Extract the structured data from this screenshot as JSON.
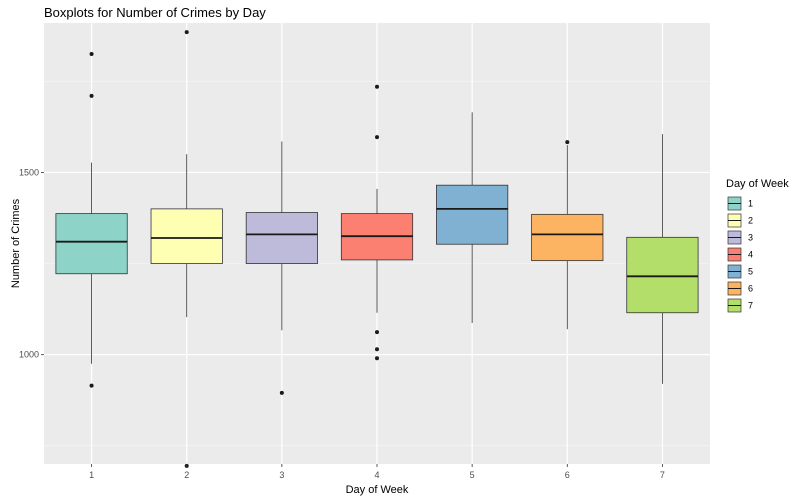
{
  "chart_data": {
    "type": "boxplot",
    "title": "Boxplots for Number of Crimes by Day",
    "xlabel": "Day of Week",
    "ylabel": "Number of Crimes",
    "categories": [
      "1",
      "2",
      "3",
      "4",
      "5",
      "6",
      "7"
    ],
    "ylim": [
      700,
      1910
    ],
    "y_ticks": [
      1000,
      1500
    ],
    "grid": true,
    "legend": {
      "title": "Day of Week",
      "placement": "right",
      "items": [
        "1",
        "2",
        "3",
        "4",
        "5",
        "6",
        "7"
      ]
    },
    "boxes": [
      {
        "category": "1",
        "whisker_low": 975,
        "q1": 1222,
        "median": 1310,
        "q3": 1387,
        "whisker_high": 1527,
        "outliers": [
          1825,
          1710,
          915
        ],
        "color": "#8DD3C7"
      },
      {
        "category": "2",
        "whisker_low": 1103,
        "q1": 1250,
        "median": 1320,
        "q3": 1400,
        "whisker_high": 1550,
        "outliers": [
          1885,
          695
        ],
        "color": "#FFFFB3"
      },
      {
        "category": "3",
        "whisker_low": 1067,
        "q1": 1250,
        "median": 1330,
        "q3": 1390,
        "whisker_high": 1585,
        "outliers": [
          895
        ],
        "color": "#BEBADA"
      },
      {
        "category": "4",
        "whisker_low": 1115,
        "q1": 1260,
        "median": 1325,
        "q3": 1387,
        "whisker_high": 1455,
        "outliers": [
          1735,
          1597,
          1062,
          1015,
          990
        ],
        "color": "#FB8072"
      },
      {
        "category": "5",
        "whisker_low": 1087,
        "q1": 1303,
        "median": 1400,
        "q3": 1465,
        "whisker_high": 1665,
        "outliers": [],
        "color": "#80B1D3"
      },
      {
        "category": "6",
        "whisker_low": 1070,
        "q1": 1258,
        "median": 1330,
        "q3": 1385,
        "whisker_high": 1575,
        "outliers": [
          1583
        ],
        "color": "#FDB462"
      },
      {
        "category": "7",
        "whisker_low": 920,
        "q1": 1115,
        "median": 1215,
        "q3": 1322,
        "whisker_high": 1605,
        "outliers": [],
        "color": "#B3DE69"
      }
    ]
  }
}
